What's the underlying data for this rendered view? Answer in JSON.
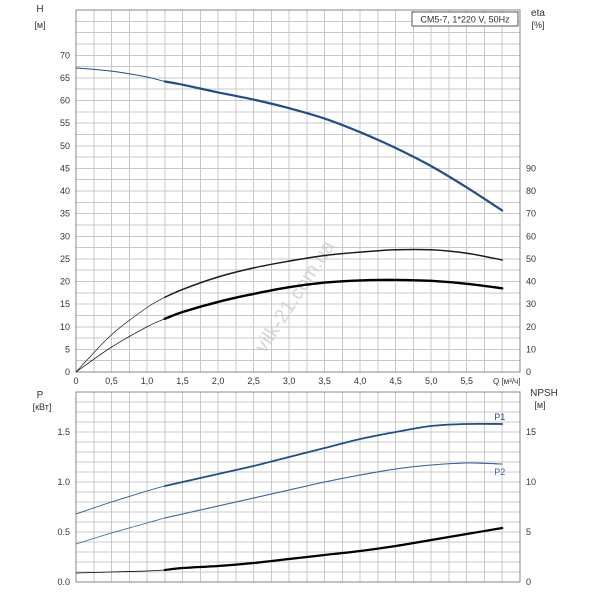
{
  "watermark": "vilk-21.com.ua",
  "chart_data": [
    {
      "type": "line",
      "title": "CM5-7, 1*220 V, 50Hz",
      "left_axis_label": "H",
      "left_axis_unit": "[м]",
      "right_axis_label": "eta",
      "right_axis_unit": "[%]",
      "xlabel": "Q [м³/ч]",
      "x_ticks": [
        "0",
        "0,5",
        "1,0",
        "1,5",
        "2,0",
        "2,5",
        "3,0",
        "3,5",
        "4,0",
        "4,5",
        "5,0",
        "5,5"
      ],
      "left_ticks": [
        "0",
        "5",
        "10",
        "15",
        "20",
        "25",
        "30",
        "35",
        "40",
        "45",
        "50",
        "55",
        "60",
        "65",
        "70"
      ],
      "right_ticks": [
        "0",
        "10",
        "20",
        "30",
        "40",
        "50",
        "60",
        "70",
        "80",
        "90"
      ],
      "xlim": [
        0,
        6.25
      ],
      "ylim_left": [
        0,
        80
      ],
      "ylim_right": [
        0,
        160
      ],
      "grid": true,
      "series": [
        {
          "id": "H",
          "axis": "left",
          "color": "#1f4e8c",
          "x": [
            0,
            0.5,
            1.0,
            1.25,
            1.5,
            2.0,
            2.5,
            3.0,
            3.5,
            4.0,
            4.5,
            5.0,
            5.5,
            6.0
          ],
          "y": [
            67.2,
            66.5,
            65.2,
            64.2,
            63.5,
            61.8,
            60.2,
            58.3,
            56.0,
            53.0,
            49.5,
            45.5,
            40.8,
            35.7
          ]
        },
        {
          "id": "eta_pump",
          "axis": "right",
          "color": "#1a1a1a",
          "x": [
            0,
            0.5,
            1.0,
            1.25,
            1.5,
            2.0,
            2.5,
            3.0,
            3.5,
            4.0,
            4.5,
            5.0,
            5.5,
            6.0
          ],
          "y": [
            0,
            16.5,
            28.5,
            33,
            36.5,
            42,
            46,
            49,
            51.5,
            53,
            54,
            54,
            52.5,
            49.5
          ]
        },
        {
          "id": "eta_total",
          "axis": "right",
          "color": "#000000",
          "x": [
            0,
            0.5,
            1.0,
            1.25,
            1.5,
            2.0,
            2.5,
            3.0,
            3.5,
            4.0,
            4.5,
            5.0,
            5.5,
            6.0
          ],
          "y": [
            0,
            11,
            20,
            23.5,
            26.5,
            31,
            34.5,
            37.5,
            39.5,
            40.5,
            40.7,
            40.3,
            39,
            37
          ]
        }
      ]
    },
    {
      "type": "line",
      "left_axis_label": "P",
      "left_axis_unit": "[кВт]",
      "right_axis_label": "NPSH",
      "right_axis_unit": "[м]",
      "left_ticks": [
        "0.0",
        "0.5",
        "1.0",
        "1.5"
      ],
      "right_ticks": [
        "0",
        "5",
        "10",
        "15"
      ],
      "xlim": [
        0,
        6.25
      ],
      "ylim_left": [
        0,
        1.9
      ],
      "ylim_right": [
        0,
        19
      ],
      "grid": true,
      "series": [
        {
          "id": "P1",
          "name": "P1",
          "axis": "left",
          "color": "#1f4e8c",
          "x": [
            0,
            0.5,
            1.0,
            1.25,
            1.5,
            2.0,
            2.5,
            3.0,
            3.5,
            4.0,
            4.5,
            5.0,
            5.5,
            6.0
          ],
          "y": [
            0.68,
            0.8,
            0.91,
            0.96,
            1.0,
            1.08,
            1.16,
            1.25,
            1.34,
            1.43,
            1.5,
            1.56,
            1.58,
            1.58
          ]
        },
        {
          "id": "P2",
          "name": "P2",
          "axis": "left",
          "color": "#3a64a3",
          "x": [
            0,
            0.5,
            1.0,
            1.25,
            1.5,
            2.0,
            2.5,
            3.0,
            3.5,
            4.0,
            4.5,
            5.0,
            5.5,
            6.0
          ],
          "y": [
            0.38,
            0.49,
            0.59,
            0.64,
            0.68,
            0.76,
            0.84,
            0.92,
            1.0,
            1.07,
            1.13,
            1.17,
            1.19,
            1.18
          ]
        },
        {
          "id": "NPSH",
          "axis": "right",
          "color": "#000000",
          "x": [
            0,
            0.5,
            1.0,
            1.25,
            1.5,
            2.0,
            2.5,
            3.0,
            3.5,
            4.0,
            4.5,
            5.0,
            5.5,
            6.0
          ],
          "y": [
            0.9,
            1.0,
            1.1,
            1.2,
            1.4,
            1.6,
            1.9,
            2.3,
            2.7,
            3.1,
            3.6,
            4.2,
            4.8,
            5.4
          ]
        }
      ]
    }
  ]
}
